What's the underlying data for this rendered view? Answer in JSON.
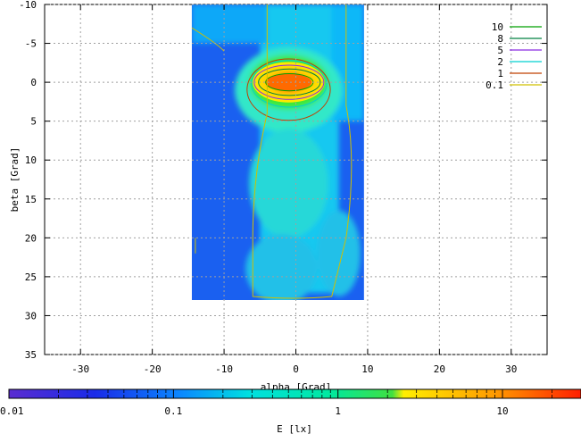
{
  "chart_data": {
    "type": "heatmap",
    "xlabel": "alpha [Grad]",
    "ylabel": "beta [Grad]",
    "xlim": [
      -35,
      35
    ],
    "ylim": [
      -10,
      35
    ],
    "y_inverted": true,
    "xticks": [
      -30,
      -20,
      -10,
      0,
      10,
      20,
      30
    ],
    "yticks": [
      -10,
      -5,
      0,
      5,
      10,
      15,
      20,
      25,
      30,
      35
    ],
    "grid": true,
    "data_extent": {
      "alpha": [
        -14.5,
        9.5
      ],
      "beta": [
        -10,
        28
      ]
    },
    "contour_levels": [
      {
        "label": "10",
        "value": 10,
        "color": "#00a000"
      },
      {
        "label": "8",
        "value": 8,
        "color": "#008040"
      },
      {
        "label": "5",
        "value": 5,
        "color": "#8a2be2"
      },
      {
        "label": "2",
        "value": 2,
        "color": "#00d0d0"
      },
      {
        "label": "1",
        "value": 1,
        "color": "#c04000"
      },
      {
        "label": "0.1",
        "value": 0.1,
        "color": "#d0c000"
      }
    ],
    "legend_position": "top-right",
    "colorbar": {
      "label": "E [lx]",
      "scale": "log",
      "range": [
        0.01,
        30
      ],
      "ticks": [
        {
          "label": "0.01",
          "value": 0.01
        },
        {
          "label": "0.1",
          "value": 0.1
        },
        {
          "label": "1",
          "value": 1
        },
        {
          "label": "10",
          "value": 10
        }
      ]
    },
    "peak": {
      "alpha": -1,
      "beta": 0,
      "value": 25
    }
  }
}
